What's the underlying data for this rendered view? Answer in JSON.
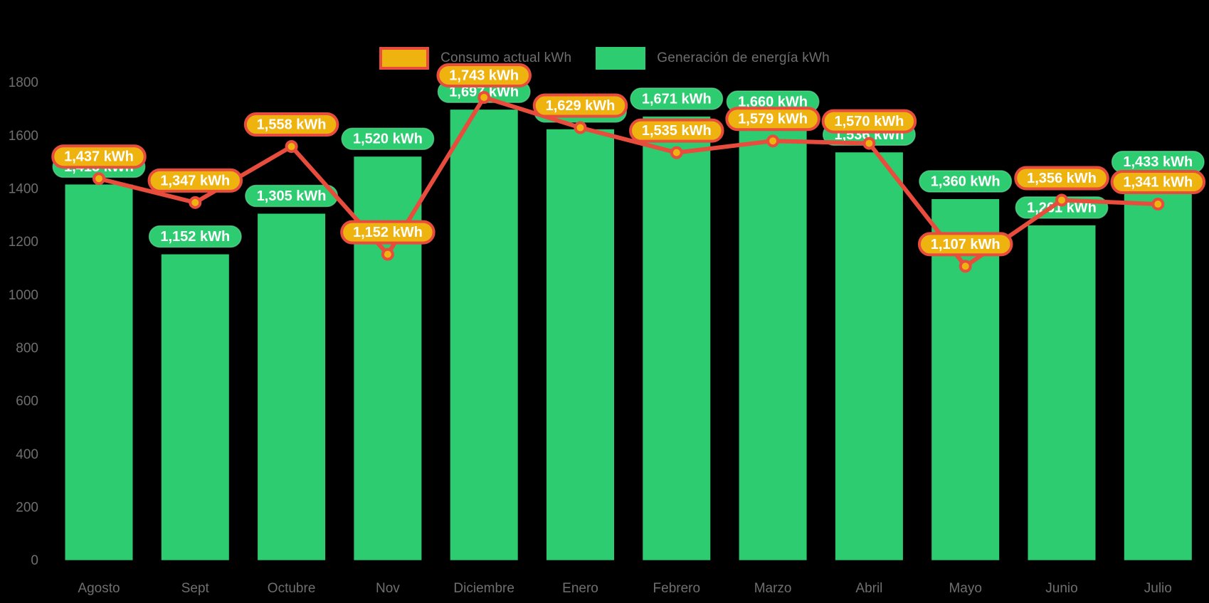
{
  "legend": {
    "items": [
      {
        "id": "consumption",
        "label": "Consumo actual kWh"
      },
      {
        "id": "generation",
        "label": "Generación de energía kWh"
      }
    ],
    "position": "top-center"
  },
  "colors": {
    "background": "#000000",
    "bar_green": "#2ecc71",
    "line_red": "#e74c3c",
    "pill_gold": "#efb310",
    "pill_text": "#ffffff",
    "axis_text": "#6f6f6f"
  },
  "chart_data": {
    "type": "bar+line",
    "title": "",
    "xlabel": "",
    "ylabel": "",
    "categories": [
      "Agosto",
      "Sept",
      "Octubre",
      "Nov",
      "Diciembre",
      "Enero",
      "Febrero",
      "Marzo",
      "Abril",
      "Mayo",
      "Junio",
      "Julio"
    ],
    "series": [
      {
        "name": "Generación de energía kWh",
        "type": "bar",
        "color": "#2ecc71",
        "values": [
          1415,
          1152,
          1305,
          1520,
          1697,
          1623,
          1671,
          1660,
          1536,
          1360,
          1261,
          1433
        ],
        "labels": [
          "1,415 kWh",
          "1,152 kWh",
          "1,305 kWh",
          "1,520 kWh",
          "1,697 kWh",
          "1,623 kWh",
          "1,671 kWh",
          "1,660 kWh",
          "1,536 kWh",
          "1,360 kWh",
          "1,261 kWh",
          "1,433 kWh"
        ],
        "label_visibility": [
          "hidden-behind-consumption-pill",
          "visible",
          "visible",
          "visible",
          "visible",
          "hidden-behind-consumption-pill",
          "visible",
          "visible",
          "partially-visible",
          "visible",
          "visible",
          "visible"
        ],
        "estimated_value_indexes": [
          0,
          5
        ],
        "note": "Values at Agosto and Enero are estimated from bar heights; their pills are covered by the consumption pills."
      },
      {
        "name": "Consumo actual kWh",
        "type": "line",
        "color": "#e74c3c",
        "marker": "circle-gold-red-ring",
        "values": [
          1437,
          1347,
          1558,
          1152,
          1743,
          1629,
          1535,
          1579,
          1570,
          1107,
          1356,
          1341
        ],
        "labels": [
          "1,437 kWh",
          "1,347 kWh",
          "1,558 kWh",
          "1,152 kWh",
          "1,743 kWh",
          "1,629 kWh",
          "1,535 kWh",
          "1,579 kWh",
          "1,570 kWh",
          "1,107 kWh",
          "1,356 kWh",
          "1,341 kWh"
        ]
      }
    ],
    "ylim": [
      0,
      1800
    ],
    "yticks": [
      "0",
      "200",
      "400",
      "600",
      "800",
      "1000",
      "1200",
      "1400",
      "1600",
      "1800"
    ],
    "grid": "off",
    "legend_position": "top-center"
  }
}
